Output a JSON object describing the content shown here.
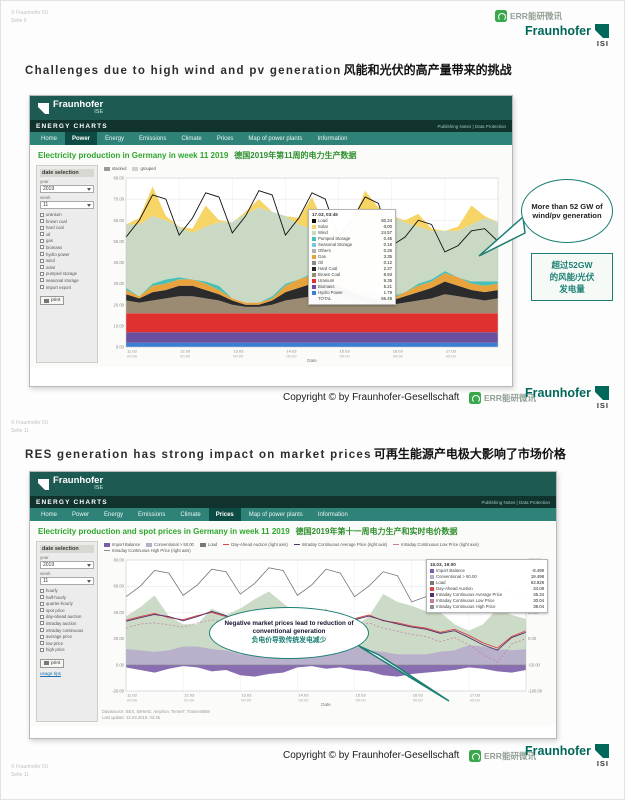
{
  "watermark": {
    "text": "ERR能研微讯"
  },
  "logo": {
    "brand": "Fraunhofer",
    "sub": "ISI"
  },
  "slides": [
    {
      "meta": [
        "© Fraunhofer ISI",
        "Seite 9"
      ],
      "title_en": "Challenges due to high wind and pv generation",
      "title_zh": "风能和光伏的高产量带来的挑战",
      "copyright": "Copyright © by Fraunhofer-Gesellschaft",
      "callout_en": "More than 52 GW of wind/pv generation",
      "callout_zh": [
        "超过52GW",
        "的风能/光伏",
        "发电量"
      ]
    },
    {
      "meta": [
        "© Fraunhofer ISI",
        "Seite 11"
      ],
      "title_en": "RES generation has strong impact on market prices",
      "title_zh": "可再生能源产电极大影响了市场价格",
      "copyright": "Copyright © by Fraunhofer-Gesellschaft",
      "callout_en": "Negative market prices lead to reduction of conventional generation",
      "callout_zh": "负电价导致传统发电减少"
    }
  ],
  "app1": {
    "brand": "Fraunhofer",
    "brand_sub": "ISE",
    "bar_title": "ENERGY CHARTS",
    "bar_links": "Publishing Notes | Data Protection",
    "nav": [
      "Home",
      "Power",
      "Energy",
      "Emissions",
      "Climate",
      "Prices",
      "Map of power plants",
      "Information"
    ],
    "active_tab": "Power",
    "heading_en": "Electricity production in Germany in week 11 2019",
    "heading_zh": "德国2019年第11周的电力生产数据",
    "legend_top": [
      {
        "label": "stacked",
        "color": "#9a9a9a",
        "type": "box"
      },
      {
        "label": "grouped",
        "color": "#d0d0d0",
        "type": "box"
      }
    ],
    "sidebar": {
      "title": "date selection",
      "year_label": "year",
      "year": "2019",
      "week_label": "week",
      "week": "11",
      "options": [
        "uranium",
        "brown coal",
        "hard coal",
        "oil",
        "gas",
        "biomass",
        "hydro power",
        "wind",
        "solar",
        "pumped storage",
        "seasonal storage",
        "import export"
      ],
      "print_label": "print"
    },
    "tooltip": {
      "date": "17.03, 03:45",
      "rows": [
        {
          "label": "Load",
          "value": "50.24",
          "color": "#111111"
        },
        {
          "label": "Solar",
          "value": "0.00",
          "color": "#f6d465"
        },
        {
          "label": "Wind",
          "value": "24.57",
          "color": "#c9d9c4"
        },
        {
          "label": "Pumped Storage",
          "value": "0.46",
          "color": "#49c0b6"
        },
        {
          "label": "Seasonal Storage",
          "value": "0.18",
          "color": "#79c7e8"
        },
        {
          "label": "Others",
          "value": "0.26",
          "color": "#b0b0b0"
        },
        {
          "label": "Gas",
          "value": "3.35",
          "color": "#e8a33d"
        },
        {
          "label": "Oil",
          "value": "0.12",
          "color": "#8a8a8a"
        },
        {
          "label": "Hard Coal",
          "value": "2.27",
          "color": "#2b2b2b"
        },
        {
          "label": "Brown Coal",
          "value": "8.93",
          "color": "#9b8b72"
        },
        {
          "label": "Uranium",
          "value": "9.35",
          "color": "#e03131"
        },
        {
          "label": "Biomass",
          "value": "5.21",
          "color": "#6a4f9e"
        },
        {
          "label": "Hydro Power",
          "value": "1.79",
          "color": "#3b7fd4"
        },
        {
          "label": "TOTAL",
          "value": "56.49",
          "color": ""
        }
      ]
    }
  },
  "app2": {
    "brand": "Fraunhofer",
    "brand_sub": "ISE",
    "bar_title": "ENERGY CHARTS",
    "bar_links": "Publishing Notes | Data Protection",
    "nav": [
      "Home",
      "Power",
      "Energy",
      "Emissions",
      "Climate",
      "Prices",
      "Map of power plants",
      "Information"
    ],
    "active_tab": "Prices",
    "heading_en": "Electricity production and spot prices in Germany in week 11 2019",
    "heading_zh": "德国2019年第十一周电力生产和实时电价数据",
    "legend_top": [
      {
        "label": "Import Balance",
        "color": "#7b5ea7",
        "type": "box"
      },
      {
        "label": "Conventional > 50.00",
        "color": "#b7aecb",
        "type": "box"
      },
      {
        "label": "Load",
        "color": "#777777",
        "type": "box"
      },
      {
        "label": "Day-Ahead Auction (right axis)",
        "color": "#d64545",
        "type": "line"
      },
      {
        "label": "Intraday Continuous Average Price (right axis)",
        "color": "#54306e",
        "type": "line"
      },
      {
        "label": "Intraday Continuous Low Price (right axis)",
        "color": "#c77ca3",
        "type": "dash"
      },
      {
        "label": "Intraday Continuous High Price (right axis)",
        "color": "#8f8f8f",
        "type": "dash"
      }
    ],
    "sidebar": {
      "title": "date selection",
      "year_label": "year",
      "year": "2019",
      "week_label": "week",
      "week": "11",
      "options": [
        "hourly",
        "half-hourly",
        "quarter-hourly",
        "spot price",
        "day-ahead auction",
        "intraday auction",
        "intraday continuous",
        "average price",
        "low price",
        "high price"
      ],
      "print_label": "print",
      "tips_label": "usage tips"
    },
    "tooltip": {
      "date": "15.03, 19:00",
      "rows": [
        {
          "label": "Import Balance",
          "value": "-8.499",
          "color": "#7b5ea7"
        },
        {
          "label": "Conventional > 50.00",
          "value": "19.498",
          "color": "#b7aecb"
        },
        {
          "label": "Load",
          "value": "63.929",
          "color": "#777777"
        },
        {
          "label": "Day-Ahead Auction",
          "value": "34.08",
          "color": "#d64545"
        },
        {
          "label": "Intraday Continuous Average Price",
          "value": "35.34",
          "color": "#54306e"
        },
        {
          "label": "Intraday Continuous Low Price",
          "value": "30.04",
          "color": "#c77ca3"
        },
        {
          "label": "Intraday Continuous High Price",
          "value": "38.04",
          "color": "#8f8f8f"
        }
      ]
    },
    "footer": [
      "Datasource: EEX, 50Hertz, Amprion, TenneT, TransnetBW",
      "Last update: 22.03.2019, 02:45"
    ]
  },
  "chart_data": [
    {
      "type": "area",
      "title": "Electricity production in Germany in week 11 2019",
      "xlabel": "Date",
      "ylabel": "Power (GW)",
      "ylim": [
        0,
        80
      ],
      "y_ticks": [
        0,
        10,
        20,
        30,
        40,
        50,
        60,
        70,
        80
      ],
      "points_per_day": 4,
      "x_tick_labels": [
        "11.03",
        "12.03",
        "13.03",
        "14.03",
        "15.03",
        "16.03",
        "17.03"
      ],
      "stack": [
        {
          "name": "Hydro Power",
          "color": "#3b7fd4",
          "values": [
            2,
            2,
            2,
            2,
            2,
            2,
            2,
            2,
            2,
            2,
            2,
            2,
            2,
            2,
            2,
            2,
            2,
            2,
            2,
            2,
            2,
            2,
            2,
            2,
            2,
            2,
            2,
            2,
            2
          ]
        },
        {
          "name": "Biomass",
          "color": "#6a4f9e",
          "values": [
            5,
            5,
            5,
            5,
            5,
            5,
            5,
            5,
            5,
            5,
            5,
            5,
            5,
            5,
            5,
            5,
            5,
            5,
            5,
            5,
            5,
            5,
            5,
            5,
            5,
            5,
            5,
            5,
            5
          ]
        },
        {
          "name": "Uranium",
          "color": "#e03131",
          "values": [
            9,
            9,
            9,
            9,
            9,
            9,
            9,
            9,
            9,
            9,
            9,
            9,
            9,
            9,
            9,
            9,
            9,
            9,
            9,
            9,
            9,
            9,
            9,
            9,
            9,
            9,
            9,
            9,
            9
          ]
        },
        {
          "name": "Brown Coal",
          "color": "#9b8b72",
          "values": [
            6,
            5,
            6,
            7,
            8,
            8,
            7,
            6,
            4,
            3,
            3,
            4,
            6,
            7,
            8,
            9,
            8,
            6,
            5,
            4,
            4,
            5,
            6,
            7,
            9,
            8,
            7,
            6,
            7
          ]
        },
        {
          "name": "Hard Coal",
          "color": "#2b2b2b",
          "values": [
            3,
            2,
            4,
            4,
            5,
            5,
            4,
            3,
            2,
            1,
            1,
            2,
            4,
            5,
            6,
            6,
            5,
            4,
            3,
            2,
            2,
            3,
            4,
            5,
            6,
            5,
            4,
            4,
            4
          ]
        },
        {
          "name": "Gas",
          "color": "#e8a33d",
          "values": [
            2,
            1,
            3,
            3,
            3,
            3,
            3,
            2,
            1,
            1,
            1,
            1,
            3,
            4,
            4,
            4,
            3,
            2,
            2,
            1,
            1,
            2,
            3,
            3,
            4,
            4,
            3,
            3,
            3
          ]
        },
        {
          "name": "Pumped Storage",
          "color": "#49c0b6",
          "values": [
            1,
            0,
            1,
            2,
            1,
            0,
            1,
            2,
            0,
            0,
            0,
            1,
            1,
            0,
            1,
            2,
            1,
            0,
            1,
            2,
            1,
            0,
            1,
            1,
            1,
            0,
            1,
            2,
            1
          ]
        },
        {
          "name": "Wind",
          "color": "#c9d9c4",
          "values": [
            30,
            34,
            32,
            28,
            24,
            22,
            26,
            30,
            36,
            42,
            45,
            40,
            32,
            26,
            21,
            18,
            22,
            28,
            35,
            40,
            38,
            33,
            27,
            23,
            19,
            22,
            27,
            30,
            28
          ]
        },
        {
          "name": "Solar",
          "color": "#f6d465",
          "values": [
            0,
            3,
            14,
            2,
            0,
            2,
            10,
            1,
            0,
            1,
            4,
            0,
            0,
            3,
            15,
            2,
            0,
            2,
            12,
            1,
            0,
            1,
            6,
            1,
            0,
            2,
            9,
            1,
            0
          ]
        }
      ],
      "lines": [
        {
          "name": "Load",
          "color": "#111111",
          "axis": "left",
          "width": 0.9,
          "values": [
            52,
            60,
            72,
            70,
            53,
            61,
            73,
            71,
            54,
            62,
            74,
            72,
            53,
            61,
            73,
            70,
            52,
            60,
            71,
            68,
            48,
            52,
            60,
            58,
            45,
            48,
            55,
            56,
            50
          ]
        }
      ]
    },
    {
      "type": "mixed",
      "title": "Electricity production and spot prices in Germany in week 11 2019",
      "xlabel": "Date",
      "ylabel": "Power (GW)",
      "ylabel_right": "Price (EUR/MWh)",
      "ylim": [
        -20,
        80
      ],
      "ylim_right": [
        -100,
        150
      ],
      "y_ticks": [
        -20,
        0,
        20,
        40,
        60,
        80
      ],
      "y_ticks_right": [
        -100,
        -50,
        0,
        50,
        100,
        150
      ],
      "points_per_day": 4,
      "x_tick_labels": [
        "11.03",
        "12.03",
        "13.03",
        "14.03",
        "15.03",
        "16.03",
        "17.03"
      ],
      "areas": [
        {
          "name": "Renewables",
          "color": "#c9d9c4",
          "opacity": 0.95,
          "values": [
            37,
            44,
            53,
            37,
            31,
            31,
            43,
            38,
            43,
            50,
            56,
            47,
            39,
            36,
            43,
            27,
            29,
            37,
            54,
            48,
            45,
            41,
            40,
            31,
            26,
            31,
            43,
            38,
            35
          ]
        },
        {
          "name": "Conventional > 50.00",
          "color": "#b7aecb",
          "opacity": 0.95,
          "values": [
            12,
            11,
            10,
            11,
            14,
            14,
            12,
            11,
            8,
            8,
            7,
            8,
            12,
            14,
            15,
            16,
            14,
            11,
            10,
            8,
            8,
            8,
            10,
            11,
            15,
            14,
            12,
            11,
            12
          ]
        },
        {
          "name": "Import Balance",
          "color": "#7b5ea7",
          "opacity": 0.9,
          "values": [
            -2,
            -4,
            -6,
            -3,
            -1,
            -2,
            -5,
            -4,
            -8,
            -9,
            -7,
            -6,
            -2,
            -1,
            -3,
            -2,
            -4,
            -5,
            -8,
            -9,
            -7,
            -6,
            -5,
            -4,
            -2,
            -3,
            -5,
            -6,
            -4
          ]
        }
      ],
      "lines": [
        {
          "name": "Load",
          "color": "#777777",
          "axis": "left",
          "width": 0.8,
          "values": [
            52,
            60,
            72,
            70,
            53,
            61,
            73,
            71,
            54,
            62,
            74,
            72,
            53,
            61,
            73,
            70,
            52,
            60,
            71,
            68,
            48,
            52,
            60,
            58,
            45,
            48,
            55,
            56,
            50
          ]
        },
        {
          "name": "Day-Ahead Auction",
          "color": "#d64545",
          "axis": "right",
          "width": 0.9,
          "values": [
            35,
            42,
            48,
            40,
            36,
            44,
            50,
            42,
            30,
            34,
            28,
            32,
            40,
            48,
            52,
            44,
            38,
            45,
            34,
            30,
            24,
            20,
            12,
            18,
            6,
            -8,
            -18,
            4,
            15
          ]
        },
        {
          "name": "Intraday Continuous Average Price",
          "color": "#54306e",
          "axis": "right",
          "width": 0.9,
          "values": [
            33,
            40,
            46,
            42,
            34,
            42,
            52,
            44,
            28,
            32,
            26,
            30,
            38,
            46,
            54,
            46,
            36,
            43,
            35,
            28,
            22,
            18,
            10,
            15,
            2,
            -12,
            -22,
            2,
            12
          ]
        },
        {
          "name": "Intraday Continuous Low Price",
          "color": "#c77ca3",
          "axis": "right",
          "width": 0.7,
          "dash": "2,2",
          "values": [
            20,
            28,
            30,
            26,
            22,
            30,
            36,
            30,
            14,
            18,
            12,
            16,
            26,
            32,
            38,
            30,
            24,
            30,
            20,
            14,
            8,
            4,
            -6,
            2,
            -12,
            -30,
            -45,
            -10,
            0
          ]
        }
      ]
    }
  ]
}
